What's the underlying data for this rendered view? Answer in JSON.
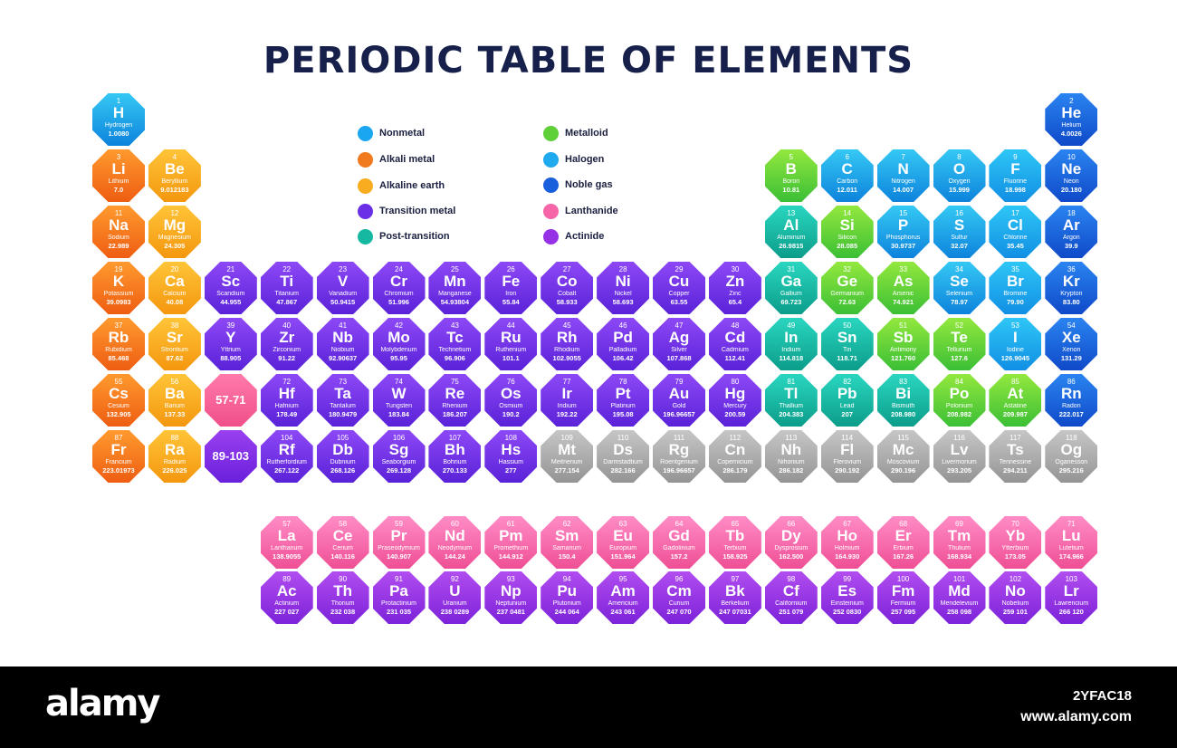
{
  "title": "PERIODIC TABLE OF ELEMENTS",
  "legend": [
    {
      "label": "Nonmetal",
      "color": "#1aa6f0"
    },
    {
      "label": "Alkali metal",
      "color": "#f27a1e"
    },
    {
      "label": "Alkaline earth",
      "color": "#f8ad20"
    },
    {
      "label": "Transition metal",
      "color": "#6a2fe6"
    },
    {
      "label": "Post-transition",
      "color": "#16b8a2"
    },
    {
      "label": "Metalloid",
      "color": "#5fcf3a"
    },
    {
      "label": "Halogen",
      "color": "#1fa9ee"
    },
    {
      "label": "Noble gas",
      "color": "#1a5fdc"
    },
    {
      "label": "Lanthanide",
      "color": "#f565a8"
    },
    {
      "label": "Actinide",
      "color": "#9632e6"
    }
  ],
  "elements": [
    {
      "n": "1",
      "s": "H",
      "name": "Hydrogen",
      "mass": "1.0080",
      "c": "nonmetal",
      "row": 1,
      "col": 1
    },
    {
      "n": "2",
      "s": "He",
      "name": "Helium",
      "mass": "4.0026",
      "c": "noble",
      "row": 1,
      "col": 18
    },
    {
      "n": "3",
      "s": "Li",
      "name": "Lithium",
      "mass": "7.0",
      "c": "alkali",
      "row": 2,
      "col": 1
    },
    {
      "n": "4",
      "s": "Be",
      "name": "Beryllium",
      "mass": "9.012183",
      "c": "alkaline",
      "row": 2,
      "col": 2
    },
    {
      "n": "5",
      "s": "B",
      "name": "Boron",
      "mass": "10.81",
      "c": "metalloid",
      "row": 2,
      "col": 13
    },
    {
      "n": "6",
      "s": "C",
      "name": "Carbon",
      "mass": "12.011",
      "c": "nonmetal",
      "row": 2,
      "col": 14
    },
    {
      "n": "7",
      "s": "N",
      "name": "Nitrogen",
      "mass": "14.007",
      "c": "nonmetal",
      "row": 2,
      "col": 15
    },
    {
      "n": "8",
      "s": "O",
      "name": "Oxygen",
      "mass": "15.999",
      "c": "nonmetal",
      "row": 2,
      "col": 16
    },
    {
      "n": "9",
      "s": "F",
      "name": "Fluorine",
      "mass": "18.998",
      "c": "halogen",
      "row": 2,
      "col": 17
    },
    {
      "n": "10",
      "s": "Ne",
      "name": "Neon",
      "mass": "20.180",
      "c": "noble",
      "row": 2,
      "col": 18
    },
    {
      "n": "11",
      "s": "Na",
      "name": "Sodium",
      "mass": "22.989",
      "c": "alkali",
      "row": 3,
      "col": 1
    },
    {
      "n": "12",
      "s": "Mg",
      "name": "Magnesium",
      "mass": "24.305",
      "c": "alkaline",
      "row": 3,
      "col": 2
    },
    {
      "n": "13",
      "s": "Al",
      "name": "Aluminum",
      "mass": "26.9815",
      "c": "post",
      "row": 3,
      "col": 13
    },
    {
      "n": "14",
      "s": "Si",
      "name": "Silicon",
      "mass": "28.085",
      "c": "metalloid",
      "row": 3,
      "col": 14
    },
    {
      "n": "15",
      "s": "P",
      "name": "Phosphorus",
      "mass": "30.9737",
      "c": "nonmetal",
      "row": 3,
      "col": 15
    },
    {
      "n": "16",
      "s": "S",
      "name": "Sulfur",
      "mass": "32.07",
      "c": "nonmetal",
      "row": 3,
      "col": 16
    },
    {
      "n": "17",
      "s": "Cl",
      "name": "Chlorine",
      "mass": "35.45",
      "c": "halogen",
      "row": 3,
      "col": 17
    },
    {
      "n": "18",
      "s": "Ar",
      "name": "Argon",
      "mass": "39.9",
      "c": "noble",
      "row": 3,
      "col": 18
    },
    {
      "n": "19",
      "s": "K",
      "name": "Potassium",
      "mass": "39.0983",
      "c": "alkali",
      "row": 4,
      "col": 1
    },
    {
      "n": "20",
      "s": "Ca",
      "name": "Calcium",
      "mass": "40.08",
      "c": "alkaline",
      "row": 4,
      "col": 2
    },
    {
      "n": "21",
      "s": "Sc",
      "name": "Scandium",
      "mass": "44.955",
      "c": "transition",
      "row": 4,
      "col": 3
    },
    {
      "n": "22",
      "s": "Ti",
      "name": "Titanium",
      "mass": "47.867",
      "c": "transition",
      "row": 4,
      "col": 4
    },
    {
      "n": "23",
      "s": "V",
      "name": "Vanadium",
      "mass": "50.9415",
      "c": "transition",
      "row": 4,
      "col": 5
    },
    {
      "n": "24",
      "s": "Cr",
      "name": "Chromium",
      "mass": "51.996",
      "c": "transition",
      "row": 4,
      "col": 6
    },
    {
      "n": "25",
      "s": "Mn",
      "name": "Manganese",
      "mass": "54.93804",
      "c": "transition",
      "row": 4,
      "col": 7
    },
    {
      "n": "26",
      "s": "Fe",
      "name": "Iron",
      "mass": "55.84",
      "c": "transition",
      "row": 4,
      "col": 8
    },
    {
      "n": "27",
      "s": "Co",
      "name": "Cobalt",
      "mass": "58.933",
      "c": "transition",
      "row": 4,
      "col": 9
    },
    {
      "n": "28",
      "s": "Ni",
      "name": "Nickel",
      "mass": "58.693",
      "c": "transition",
      "row": 4,
      "col": 10
    },
    {
      "n": "29",
      "s": "Cu",
      "name": "Copper",
      "mass": "63.55",
      "c": "transition",
      "row": 4,
      "col": 11
    },
    {
      "n": "30",
      "s": "Zn",
      "name": "Zinc",
      "mass": "65.4",
      "c": "transition",
      "row": 4,
      "col": 12
    },
    {
      "n": "31",
      "s": "Ga",
      "name": "Gallium",
      "mass": "69.723",
      "c": "post",
      "row": 4,
      "col": 13
    },
    {
      "n": "32",
      "s": "Ge",
      "name": "Germanium",
      "mass": "72.63",
      "c": "metalloid",
      "row": 4,
      "col": 14
    },
    {
      "n": "33",
      "s": "As",
      "name": "Arsenic",
      "mass": "74.921",
      "c": "metalloid",
      "row": 4,
      "col": 15
    },
    {
      "n": "34",
      "s": "Se",
      "name": "Selenium",
      "mass": "78.97",
      "c": "nonmetal",
      "row": 4,
      "col": 16
    },
    {
      "n": "35",
      "s": "Br",
      "name": "Bromine",
      "mass": "79.90",
      "c": "halogen",
      "row": 4,
      "col": 17
    },
    {
      "n": "36",
      "s": "Kr",
      "name": "Krypton",
      "mass": "83.80",
      "c": "noble",
      "row": 4,
      "col": 18
    },
    {
      "n": "37",
      "s": "Rb",
      "name": "Rubidium",
      "mass": "85.468",
      "c": "alkali",
      "row": 5,
      "col": 1
    },
    {
      "n": "38",
      "s": "Sr",
      "name": "Strontium",
      "mass": "87.62",
      "c": "alkaline",
      "row": 5,
      "col": 2
    },
    {
      "n": "39",
      "s": "Y",
      "name": "Yttrium",
      "mass": "88.905",
      "c": "transition",
      "row": 5,
      "col": 3
    },
    {
      "n": "40",
      "s": "Zr",
      "name": "Zirconium",
      "mass": "91.22",
      "c": "transition",
      "row": 5,
      "col": 4
    },
    {
      "n": "41",
      "s": "Nb",
      "name": "Niobium",
      "mass": "92.90637",
      "c": "transition",
      "row": 5,
      "col": 5
    },
    {
      "n": "42",
      "s": "Mo",
      "name": "Molybdenum",
      "mass": "95.95",
      "c": "transition",
      "row": 5,
      "col": 6
    },
    {
      "n": "43",
      "s": "Tc",
      "name": "Technetium",
      "mass": "96.906",
      "c": "transition",
      "row": 5,
      "col": 7
    },
    {
      "n": "44",
      "s": "Ru",
      "name": "Ruthenium",
      "mass": "101.1",
      "c": "transition",
      "row": 5,
      "col": 8
    },
    {
      "n": "45",
      "s": "Rh",
      "name": "Rhodium",
      "mass": "102.9055",
      "c": "transition",
      "row": 5,
      "col": 9
    },
    {
      "n": "46",
      "s": "Pd",
      "name": "Palladium",
      "mass": "106.42",
      "c": "transition",
      "row": 5,
      "col": 10
    },
    {
      "n": "47",
      "s": "Ag",
      "name": "Silver",
      "mass": "107.868",
      "c": "transition",
      "row": 5,
      "col": 11
    },
    {
      "n": "48",
      "s": "Cd",
      "name": "Cadmium",
      "mass": "112.41",
      "c": "transition",
      "row": 5,
      "col": 12
    },
    {
      "n": "49",
      "s": "In",
      "name": "Indium",
      "mass": "114.818",
      "c": "post",
      "row": 5,
      "col": 13
    },
    {
      "n": "50",
      "s": "Sn",
      "name": "Tin",
      "mass": "118.71",
      "c": "post",
      "row": 5,
      "col": 14
    },
    {
      "n": "51",
      "s": "Sb",
      "name": "Antimony",
      "mass": "121.760",
      "c": "metalloid",
      "row": 5,
      "col": 15
    },
    {
      "n": "52",
      "s": "Te",
      "name": "Tellurium",
      "mass": "127.6",
      "c": "metalloid",
      "row": 5,
      "col": 16
    },
    {
      "n": "53",
      "s": "I",
      "name": "Iodine",
      "mass": "126.9045",
      "c": "halogen",
      "row": 5,
      "col": 17
    },
    {
      "n": "54",
      "s": "Xe",
      "name": "Xenon",
      "mass": "131.29",
      "c": "noble",
      "row": 5,
      "col": 18
    },
    {
      "n": "55",
      "s": "Cs",
      "name": "Cesium",
      "mass": "132.905",
      "c": "alkali",
      "row": 6,
      "col": 1
    },
    {
      "n": "56",
      "s": "Ba",
      "name": "Barium",
      "mass": "137.33",
      "c": "alkaline",
      "row": 6,
      "col": 2
    },
    {
      "n": "",
      "s": "",
      "name": "",
      "mass": "",
      "ph": "57-71",
      "c": "lanthanide-ph",
      "row": 6,
      "col": 3
    },
    {
      "n": "72",
      "s": "Hf",
      "name": "Hafnium",
      "mass": "178.49",
      "c": "transition",
      "row": 6,
      "col": 4
    },
    {
      "n": "73",
      "s": "Ta",
      "name": "Tantalum",
      "mass": "180.9479",
      "c": "transition",
      "row": 6,
      "col": 5
    },
    {
      "n": "74",
      "s": "W",
      "name": "Tungsten",
      "mass": "183.84",
      "c": "transition",
      "row": 6,
      "col": 6
    },
    {
      "n": "75",
      "s": "Re",
      "name": "Rhenium",
      "mass": "186.207",
      "c": "transition",
      "row": 6,
      "col": 7
    },
    {
      "n": "76",
      "s": "Os",
      "name": "Osmium",
      "mass": "190.2",
      "c": "transition",
      "row": 6,
      "col": 8
    },
    {
      "n": "77",
      "s": "Ir",
      "name": "Iridium",
      "mass": "192.22",
      "c": "transition",
      "row": 6,
      "col": 9
    },
    {
      "n": "78",
      "s": "Pt",
      "name": "Platinum",
      "mass": "195.08",
      "c": "transition",
      "row": 6,
      "col": 10
    },
    {
      "n": "79",
      "s": "Au",
      "name": "Gold",
      "mass": "196.96657",
      "c": "transition",
      "row": 6,
      "col": 11
    },
    {
      "n": "80",
      "s": "Hg",
      "name": "Mercury",
      "mass": "200.59",
      "c": "transition",
      "row": 6,
      "col": 12
    },
    {
      "n": "81",
      "s": "Tl",
      "name": "Thallium",
      "mass": "204.383",
      "c": "post",
      "row": 6,
      "col": 13
    },
    {
      "n": "82",
      "s": "Pb",
      "name": "Lead",
      "mass": "207",
      "c": "post",
      "row": 6,
      "col": 14
    },
    {
      "n": "83",
      "s": "Bi",
      "name": "Bismuth",
      "mass": "208.980",
      "c": "post",
      "row": 6,
      "col": 15
    },
    {
      "n": "84",
      "s": "Po",
      "name": "Polonium",
      "mass": "208.982",
      "c": "metalloid",
      "row": 6,
      "col": 16
    },
    {
      "n": "85",
      "s": "At",
      "name": "Astatine",
      "mass": "209.987",
      "c": "metalloid",
      "row": 6,
      "col": 17
    },
    {
      "n": "86",
      "s": "Rn",
      "name": "Radon",
      "mass": "222.017",
      "c": "noble",
      "row": 6,
      "col": 18
    },
    {
      "n": "87",
      "s": "Fr",
      "name": "Francium",
      "mass": "223.01973",
      "c": "alkali",
      "row": 7,
      "col": 1
    },
    {
      "n": "88",
      "s": "Ra",
      "name": "Radium",
      "mass": "226.025",
      "c": "alkaline",
      "row": 7,
      "col": 2
    },
    {
      "n": "",
      "s": "",
      "name": "",
      "mass": "",
      "ph": "89-103",
      "c": "actinide-ph",
      "row": 7,
      "col": 3
    },
    {
      "n": "104",
      "s": "Rf",
      "name": "Rutherfordium",
      "mass": "267.122",
      "c": "transition",
      "row": 7,
      "col": 4
    },
    {
      "n": "105",
      "s": "Db",
      "name": "Dubnium",
      "mass": "268.126",
      "c": "transition",
      "row": 7,
      "col": 5
    },
    {
      "n": "106",
      "s": "Sg",
      "name": "Seaborgium",
      "mass": "269.128",
      "c": "transition",
      "row": 7,
      "col": 6
    },
    {
      "n": "107",
      "s": "Bh",
      "name": "Bohrium",
      "mass": "270.133",
      "c": "transition",
      "row": 7,
      "col": 7
    },
    {
      "n": "108",
      "s": "Hs",
      "name": "Hassium",
      "mass": "277",
      "c": "transition",
      "row": 7,
      "col": 8
    },
    {
      "n": "109",
      "s": "Mt",
      "name": "Meitnerium",
      "mass": "277.154",
      "c": "unknown",
      "row": 7,
      "col": 9
    },
    {
      "n": "110",
      "s": "Ds",
      "name": "Darmstadtium",
      "mass": "282.166",
      "c": "unknown",
      "row": 7,
      "col": 10
    },
    {
      "n": "111",
      "s": "Rg",
      "name": "Roentgenium",
      "mass": "196.96657",
      "c": "unknown",
      "row": 7,
      "col": 11
    },
    {
      "n": "112",
      "s": "Cn",
      "name": "Copernicium",
      "mass": "286.179",
      "c": "unknown",
      "row": 7,
      "col": 12
    },
    {
      "n": "113",
      "s": "Nh",
      "name": "Nihonium",
      "mass": "286.182",
      "c": "unknown",
      "row": 7,
      "col": 13
    },
    {
      "n": "114",
      "s": "Fl",
      "name": "Flerovium",
      "mass": "290.192",
      "c": "unknown",
      "row": 7,
      "col": 14
    },
    {
      "n": "115",
      "s": "Mc",
      "name": "Moscovium",
      "mass": "290.196",
      "c": "unknown",
      "row": 7,
      "col": 15
    },
    {
      "n": "116",
      "s": "Lv",
      "name": "Livermorium",
      "mass": "293.205",
      "c": "unknown",
      "row": 7,
      "col": 16
    },
    {
      "n": "117",
      "s": "Ts",
      "name": "Tennessine",
      "mass": "294.211",
      "c": "unknown",
      "row": 7,
      "col": 17
    },
    {
      "n": "118",
      "s": "Og",
      "name": "Oganesson",
      "mass": "295.216",
      "c": "unknown",
      "row": 7,
      "col": 18
    },
    {
      "n": "57",
      "s": "La",
      "name": "Lanthanum",
      "mass": "138.9055",
      "c": "lanthanide",
      "row": 9,
      "col": 4
    },
    {
      "n": "58",
      "s": "Ce",
      "name": "Cerium",
      "mass": "140.116",
      "c": "lanthanide",
      "row": 9,
      "col": 5
    },
    {
      "n": "59",
      "s": "Pr",
      "name": "Praseodymium",
      "mass": "140.907",
      "c": "lanthanide",
      "row": 9,
      "col": 6
    },
    {
      "n": "60",
      "s": "Nd",
      "name": "Neodymium",
      "mass": "144.24",
      "c": "lanthanide",
      "row": 9,
      "col": 7
    },
    {
      "n": "61",
      "s": "Pm",
      "name": "Promethium",
      "mass": "144.912",
      "c": "lanthanide",
      "row": 9,
      "col": 8
    },
    {
      "n": "62",
      "s": "Sm",
      "name": "Samarium",
      "mass": "150.4",
      "c": "lanthanide",
      "row": 9,
      "col": 9
    },
    {
      "n": "63",
      "s": "Eu",
      "name": "Europium",
      "mass": "151.964",
      "c": "lanthanide",
      "row": 9,
      "col": 10
    },
    {
      "n": "64",
      "s": "Gd",
      "name": "Gadolinium",
      "mass": "157.2",
      "c": "lanthanide",
      "row": 9,
      "col": 11
    },
    {
      "n": "65",
      "s": "Tb",
      "name": "Terbium",
      "mass": "158.925",
      "c": "lanthanide",
      "row": 9,
      "col": 12
    },
    {
      "n": "66",
      "s": "Dy",
      "name": "Dysprosium",
      "mass": "162.500",
      "c": "lanthanide",
      "row": 9,
      "col": 13
    },
    {
      "n": "67",
      "s": "Ho",
      "name": "Holmium",
      "mass": "164.930",
      "c": "lanthanide",
      "row": 9,
      "col": 14
    },
    {
      "n": "68",
      "s": "Er",
      "name": "Erbium",
      "mass": "167.26",
      "c": "lanthanide",
      "row": 9,
      "col": 15
    },
    {
      "n": "69",
      "s": "Tm",
      "name": "Thulium",
      "mass": "168.934",
      "c": "lanthanide",
      "row": 9,
      "col": 16
    },
    {
      "n": "70",
      "s": "Yb",
      "name": "Ytterbium",
      "mass": "173.05",
      "c": "lanthanide",
      "row": 9,
      "col": 17
    },
    {
      "n": "71",
      "s": "Lu",
      "name": "Lutetium",
      "mass": "174.966",
      "c": "lanthanide",
      "row": 9,
      "col": 18
    },
    {
      "n": "89",
      "s": "Ac",
      "name": "Actinium",
      "mass": "227 027",
      "c": "actinide",
      "row": 10,
      "col": 4
    },
    {
      "n": "90",
      "s": "Th",
      "name": "Thorium",
      "mass": "232 038",
      "c": "actinide",
      "row": 10,
      "col": 5
    },
    {
      "n": "91",
      "s": "Pa",
      "name": "Protactinium",
      "mass": "231 035",
      "c": "actinide",
      "row": 10,
      "col": 6
    },
    {
      "n": "92",
      "s": "U",
      "name": "Uranium",
      "mass": "238 0289",
      "c": "actinide",
      "row": 10,
      "col": 7
    },
    {
      "n": "93",
      "s": "Np",
      "name": "Neptunium",
      "mass": "237 0481",
      "c": "actinide",
      "row": 10,
      "col": 8
    },
    {
      "n": "94",
      "s": "Pu",
      "name": "Plutonium",
      "mass": "244 064",
      "c": "actinide",
      "row": 10,
      "col": 9
    },
    {
      "n": "95",
      "s": "Am",
      "name": "Americium",
      "mass": "243 061",
      "c": "actinide",
      "row": 10,
      "col": 10
    },
    {
      "n": "96",
      "s": "Cm",
      "name": "Curium",
      "mass": "247 070",
      "c": "actinide",
      "row": 10,
      "col": 11
    },
    {
      "n": "97",
      "s": "Bk",
      "name": "Berkelium",
      "mass": "247 07031",
      "c": "actinide",
      "row": 10,
      "col": 12
    },
    {
      "n": "98",
      "s": "Cf",
      "name": "Californium",
      "mass": "251 079",
      "c": "actinide",
      "row": 10,
      "col": 13
    },
    {
      "n": "99",
      "s": "Es",
      "name": "Einsteinium",
      "mass": "252 0830",
      "c": "actinide",
      "row": 10,
      "col": 14
    },
    {
      "n": "100",
      "s": "Fm",
      "name": "Fermium",
      "mass": "257 095",
      "c": "actinide",
      "row": 10,
      "col": 15
    },
    {
      "n": "101",
      "s": "Md",
      "name": "Mendelevium",
      "mass": "258 098",
      "c": "actinide",
      "row": 10,
      "col": 16
    },
    {
      "n": "102",
      "s": "No",
      "name": "Nobelium",
      "mass": "259 101",
      "c": "actinide",
      "row": 10,
      "col": 17
    },
    {
      "n": "103",
      "s": "Lr",
      "name": "Lawrencium",
      "mass": "266 120",
      "c": "actinide",
      "row": 10,
      "col": 18
    }
  ],
  "footer": {
    "brand": "alamy",
    "image_id": "2YFAC18",
    "site": "www.alamy.com"
  }
}
